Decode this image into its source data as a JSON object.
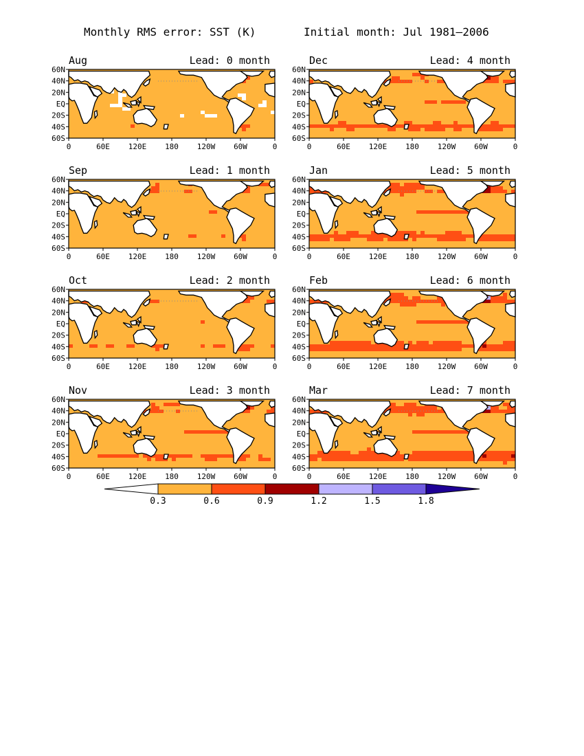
{
  "figure": {
    "title": "Monthly RMS error: SST (K)",
    "subtitle": "Initial month: Jul 1981–2006"
  },
  "colors": {
    "background": "#ffffff",
    "land": "#ffffff",
    "outline": "#000000",
    "bins": [
      "#ffffff",
      "#ffb43c",
      "#ff4f14",
      "#a00000",
      "#beb4ff",
      "#6e5ae1",
      "#1e0096"
    ]
  },
  "chart_data": [
    {
      "type": "heatmap",
      "month": "Aug",
      "lead_label": "Lead: 0 month",
      "x_ticks": [
        "0",
        "60E",
        "120E",
        "180",
        "120W",
        "60W",
        "0"
      ],
      "y_ticks": [
        "60N",
        "40N",
        "20N",
        "EQ",
        "20S",
        "40S",
        "60S"
      ],
      "ylim": [
        -60,
        60
      ],
      "xlim": [
        0,
        360
      ],
      "variable": "SST RMS error (K)"
    },
    {
      "type": "heatmap",
      "month": "Dec",
      "lead_label": "Lead: 4 month",
      "x_ticks": [
        "0",
        "60E",
        "120E",
        "180",
        "120W",
        "60W",
        "0"
      ],
      "y_ticks": [
        "60N",
        "40N",
        "20N",
        "EQ",
        "20S",
        "40S",
        "60S"
      ],
      "ylim": [
        -60,
        60
      ],
      "xlim": [
        0,
        360
      ],
      "variable": "SST RMS error (K)"
    },
    {
      "type": "heatmap",
      "month": "Sep",
      "lead_label": "Lead: 1 month",
      "x_ticks": [
        "0",
        "60E",
        "120E",
        "180",
        "120W",
        "60W",
        "0"
      ],
      "y_ticks": [
        "60N",
        "40N",
        "20N",
        "EQ",
        "20S",
        "40S",
        "60S"
      ],
      "ylim": [
        -60,
        60
      ],
      "xlim": [
        0,
        360
      ],
      "variable": "SST RMS error (K)"
    },
    {
      "type": "heatmap",
      "month": "Jan",
      "lead_label": "Lead: 5 month",
      "x_ticks": [
        "0",
        "60E",
        "120E",
        "180",
        "120W",
        "60W",
        "0"
      ],
      "y_ticks": [
        "60N",
        "40N",
        "20N",
        "EQ",
        "20S",
        "40S",
        "60S"
      ],
      "ylim": [
        -60,
        60
      ],
      "xlim": [
        0,
        360
      ],
      "variable": "SST RMS error (K)"
    },
    {
      "type": "heatmap",
      "month": "Oct",
      "lead_label": "Lead: 2 month",
      "x_ticks": [
        "0",
        "60E",
        "120E",
        "180",
        "120W",
        "60W",
        "0"
      ],
      "y_ticks": [
        "60N",
        "40N",
        "20N",
        "EQ",
        "20S",
        "40S",
        "60S"
      ],
      "ylim": [
        -60,
        60
      ],
      "xlim": [
        0,
        360
      ],
      "variable": "SST RMS error (K)"
    },
    {
      "type": "heatmap",
      "month": "Feb",
      "lead_label": "Lead: 6 month",
      "x_ticks": [
        "0",
        "60E",
        "120E",
        "180",
        "120W",
        "60W",
        "0"
      ],
      "y_ticks": [
        "60N",
        "40N",
        "20N",
        "EQ",
        "20S",
        "40S",
        "60S"
      ],
      "ylim": [
        -60,
        60
      ],
      "xlim": [
        0,
        360
      ],
      "variable": "SST RMS error (K)"
    },
    {
      "type": "heatmap",
      "month": "Nov",
      "lead_label": "Lead: 3 month",
      "x_ticks": [
        "0",
        "60E",
        "120E",
        "180",
        "120W",
        "60W",
        "0"
      ],
      "y_ticks": [
        "60N",
        "40N",
        "20N",
        "EQ",
        "20S",
        "40S",
        "60S"
      ],
      "ylim": [
        -60,
        60
      ],
      "xlim": [
        0,
        360
      ],
      "variable": "SST RMS error (K)"
    },
    {
      "type": "heatmap",
      "month": "Mar",
      "lead_label": "Lead: 7 month",
      "x_ticks": [
        "0",
        "60E",
        "120E",
        "180",
        "120W",
        "60W",
        "0"
      ],
      "y_ticks": [
        "60N",
        "40N",
        "20N",
        "EQ",
        "20S",
        "40S",
        "60S"
      ],
      "ylim": [
        -60,
        60
      ],
      "xlim": [
        0,
        360
      ],
      "variable": "SST RMS error (K)"
    }
  ],
  "colorbar": {
    "levels": [
      "0.3",
      "0.6",
      "0.9",
      "1.2",
      "1.5",
      "1.8"
    ]
  }
}
